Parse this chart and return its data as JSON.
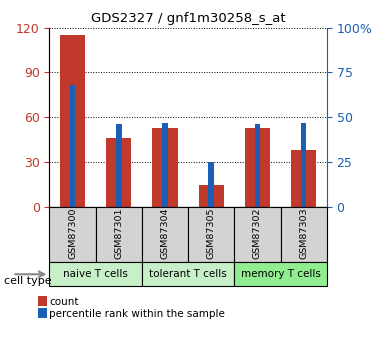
{
  "title": "GDS2327 / gnf1m30258_s_at",
  "samples": [
    "GSM87300",
    "GSM87301",
    "GSM87304",
    "GSM87305",
    "GSM87302",
    "GSM87303"
  ],
  "counts": [
    115,
    46,
    53,
    15,
    53,
    38
  ],
  "percentiles": [
    68,
    46,
    47,
    25,
    46,
    47
  ],
  "left_ylim": [
    0,
    120
  ],
  "right_ylim": [
    0,
    100
  ],
  "left_yticks": [
    0,
    30,
    60,
    90,
    120
  ],
  "right_yticks": [
    0,
    25,
    50,
    75,
    100
  ],
  "right_yticklabels": [
    "0",
    "25",
    "50",
    "75",
    "100%"
  ],
  "bar_color_red": "#C0392B",
  "bar_color_blue": "#1a5fb4",
  "cell_type_label": "cell type",
  "legend_count": "count",
  "legend_percentile": "percentile rank within the sample",
  "red_bar_width": 0.55,
  "blue_bar_width": 0.12,
  "tick_label_color_left": "#C0392B",
  "tick_label_color_right": "#1a5fb4",
  "sample_box_color": "#d3d3d3",
  "group_info": [
    {
      "label": "naive T cells",
      "start": 0,
      "end": 2,
      "color": "#c8f0c8"
    },
    {
      "label": "tolerant T cells",
      "start": 2,
      "end": 4,
      "color": "#c8f0c8"
    },
    {
      "label": "memory T cells",
      "start": 4,
      "end": 6,
      "color": "#90ee90"
    }
  ]
}
